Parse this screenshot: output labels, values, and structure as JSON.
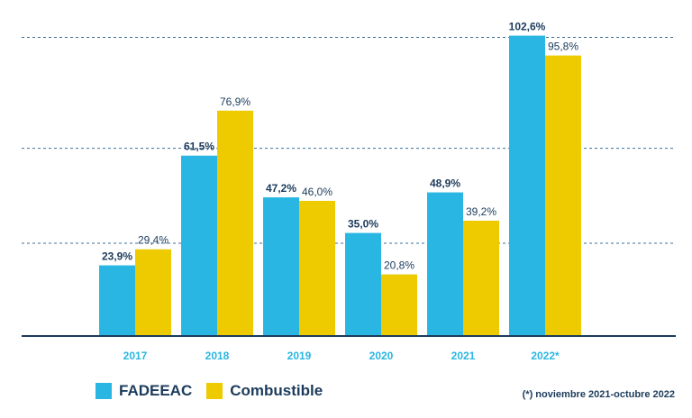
{
  "chart_data": {
    "type": "bar",
    "categories": [
      "2017",
      "2018",
      "2019",
      "2020",
      "2021",
      "2022*"
    ],
    "series": [
      {
        "name": "FADEEAC",
        "values": [
          23.9,
          61.5,
          47.2,
          35.0,
          48.9,
          102.6
        ],
        "labels": [
          "23,9%",
          "61,5%",
          "47,2%",
          "35,0%",
          "48,9%",
          "102,6%"
        ],
        "color": "#29b6e3"
      },
      {
        "name": "Combustible",
        "values": [
          29.4,
          76.9,
          46.0,
          20.8,
          39.2,
          95.8
        ],
        "labels": [
          "29,4%",
          "76,9%",
          "46,0%",
          "20,8%",
          "39,2%",
          "95,8%"
        ],
        "color": "#eecb00"
      }
    ],
    "ylim": [
      0,
      110
    ],
    "grid": true,
    "legend_position": "bottom-left",
    "footnote": "(*) noviembre 2021-octubre 2022",
    "colors": {
      "category_text": "#29b6e3",
      "label_text": "#1c3b5c",
      "grid": "#3d6f98",
      "axis": "#1c3b5c"
    }
  }
}
